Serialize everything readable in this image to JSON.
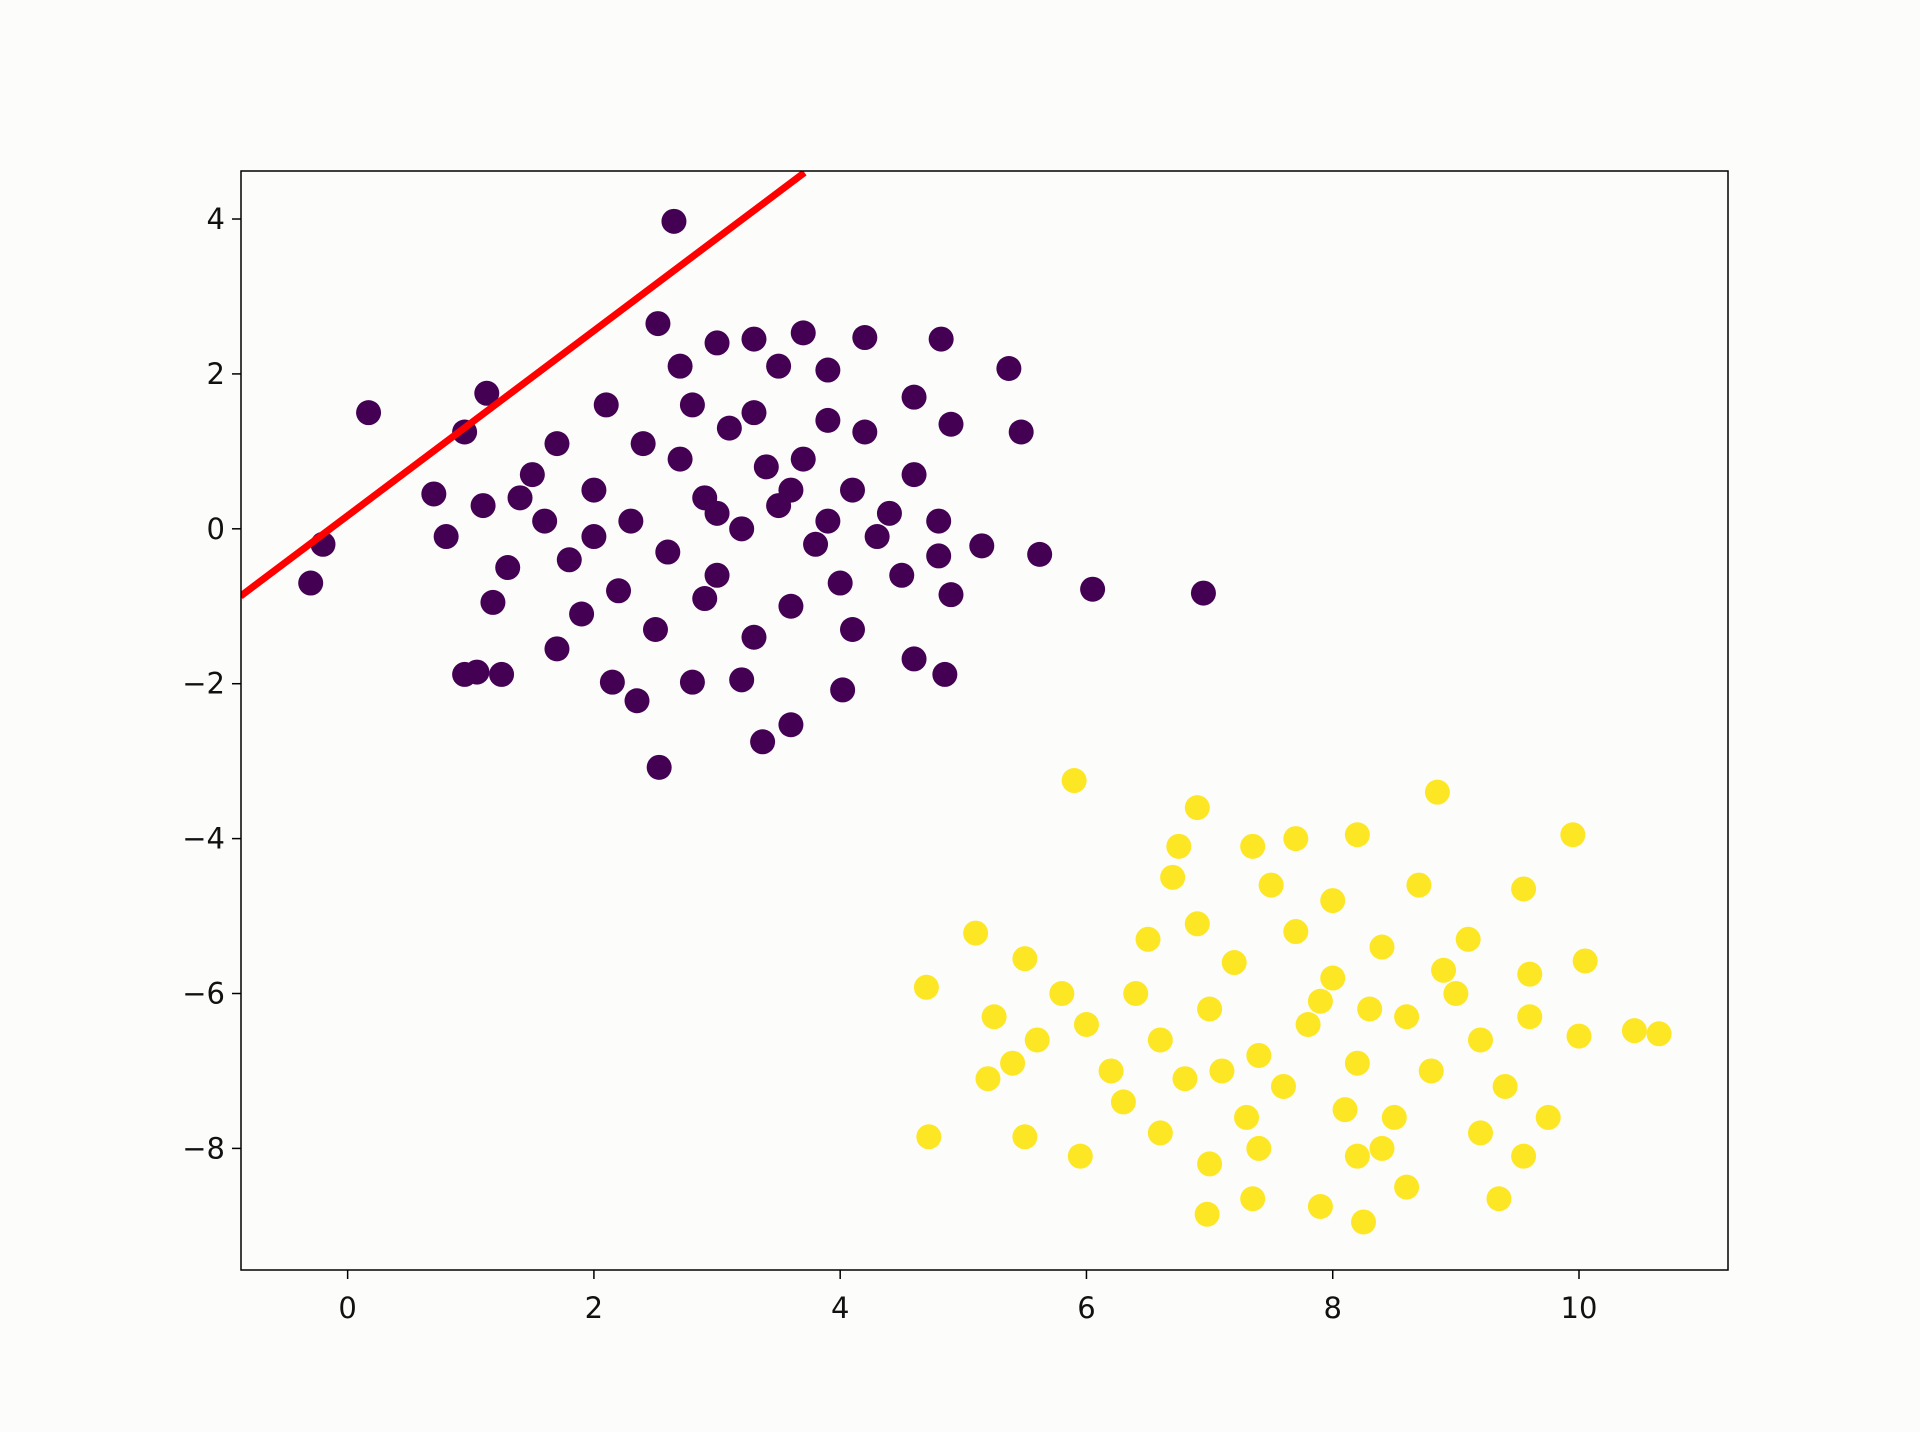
{
  "chart_data": {
    "type": "scatter",
    "xlim": [
      -0.866,
      11.21
    ],
    "ylim": [
      -9.57,
      4.62
    ],
    "xticks": [
      0,
      2,
      4,
      6,
      8,
      10
    ],
    "yticks": [
      {
        "value": -8,
        "label": "−8"
      },
      {
        "value": -6,
        "label": "−6"
      },
      {
        "value": -4,
        "label": "−4"
      },
      {
        "value": -2,
        "label": "−2"
      },
      0,
      2,
      4
    ],
    "series": [
      {
        "color": "#440154",
        "x": [
          -0.3,
          -0.2,
          0.17,
          2.65,
          6.05,
          6.95,
          5.62,
          5.47,
          5.37,
          2.53,
          3.37,
          3.6,
          4.82,
          4.2,
          3.7,
          2.52,
          1.13,
          0.95,
          0.7,
          0.8,
          0.95,
          1.05,
          1.25,
          1.18,
          4.02,
          4.85,
          4.6,
          4.9,
          5.15,
          4.8,
          2.35,
          2.15,
          2.8,
          3.2,
          1.7,
          4.6,
          4.9,
          4.2,
          3.3,
          3.0,
          2.7,
          3.5,
          3.9,
          2.0,
          2.3,
          2.6,
          2.9,
          3.2,
          3.5,
          3.8,
          4.1,
          2.2,
          2.7,
          3.0,
          3.4,
          3.7,
          4.3,
          1.6,
          1.8,
          1.5,
          2.4,
          3.1,
          3.6,
          4.0,
          4.4,
          4.6,
          1.3,
          1.4,
          2.1,
          2.8,
          3.3,
          3.9,
          2.5,
          3.3,
          4.1,
          1.9,
          2.9,
          3.6,
          4.8,
          1.1,
          2.0,
          3.0,
          3.9,
          4.5,
          1.7
        ],
        "y": [
          -0.7,
          -0.2,
          1.5,
          3.97,
          -0.78,
          -0.83,
          -0.33,
          1.25,
          2.07,
          -3.08,
          -2.75,
          -2.53,
          2.45,
          2.47,
          2.53,
          2.65,
          1.75,
          1.25,
          0.45,
          -0.1,
          -1.88,
          -1.85,
          -1.88,
          -0.95,
          -2.08,
          -1.88,
          -1.68,
          -0.85,
          -0.22,
          -0.35,
          -2.22,
          -1.98,
          -1.98,
          -1.95,
          -1.55,
          1.7,
          1.35,
          1.25,
          2.45,
          2.4,
          2.1,
          2.1,
          2.05,
          0.5,
          0.1,
          -0.3,
          0.4,
          0.0,
          0.3,
          -0.2,
          0.5,
          -0.8,
          0.9,
          -0.6,
          0.8,
          0.9,
          -0.1,
          0.1,
          -0.4,
          0.7,
          1.1,
          1.3,
          -1.0,
          -0.7,
          0.2,
          0.7,
          -0.5,
          0.4,
          1.6,
          1.6,
          1.5,
          1.4,
          -1.3,
          -1.4,
          -1.3,
          -1.1,
          -0.9,
          0.5,
          0.1,
          0.3,
          -0.1,
          0.2,
          0.1,
          -0.6,
          1.1
        ]
      },
      {
        "color": "#fde725",
        "x": [
          5.9,
          6.9,
          8.85,
          9.95,
          9.55,
          10.45,
          10.65,
          10.05,
          9.75,
          9.35,
          8.25,
          7.9,
          7.35,
          6.98,
          8.6,
          5.95,
          5.5,
          4.72,
          5.2,
          4.7,
          5.1,
          5.25,
          5.5,
          7.0,
          8.2,
          9.55,
          9.6,
          10.0,
          6.75,
          7.35,
          8.2,
          7.7,
          7.0,
          7.4,
          7.8,
          8.2,
          8.6,
          7.6,
          8.0,
          6.6,
          6.4,
          6.8,
          7.2,
          8.4,
          8.8,
          9.0,
          9.2,
          7.7,
          8.1,
          6.9,
          6.2,
          6.0,
          8.5,
          7.3,
          9.4,
          9.1,
          6.5,
          7.9,
          8.3,
          7.1,
          6.3,
          8.9,
          5.8,
          9.6,
          7.5,
          8.0,
          6.7,
          8.7,
          7.4,
          8.4,
          6.6,
          9.2,
          5.6,
          5.4
        ],
        "y": [
          -3.25,
          -3.6,
          -3.4,
          -3.95,
          -4.65,
          -6.48,
          -6.52,
          -5.58,
          -7.6,
          -8.65,
          -8.95,
          -8.75,
          -8.65,
          -8.85,
          -8.5,
          -8.1,
          -7.85,
          -7.85,
          -7.1,
          -5.92,
          -5.22,
          -6.3,
          -5.55,
          -8.2,
          -8.1,
          -8.1,
          -5.75,
          -6.55,
          -4.1,
          -4.1,
          -3.95,
          -4.0,
          -6.2,
          -6.8,
          -6.4,
          -6.9,
          -6.3,
          -7.2,
          -5.8,
          -6.6,
          -6.0,
          -7.1,
          -5.6,
          -5.4,
          -7.0,
          -6.0,
          -6.6,
          -5.2,
          -7.5,
          -5.1,
          -7.0,
          -6.4,
          -7.6,
          -7.6,
          -7.2,
          -5.3,
          -5.3,
          -6.1,
          -6.2,
          -7.0,
          -7.4,
          -5.7,
          -6.0,
          -6.3,
          -4.6,
          -4.8,
          -4.5,
          -4.6,
          -8.0,
          -8.0,
          -7.8,
          -7.8,
          -6.6,
          -6.9
        ]
      },
      {
        "type": "line",
        "color": "#ff0000",
        "x": [
          -0.87,
          3.71
        ],
        "y": [
          -0.87,
          4.6
        ]
      }
    ]
  }
}
